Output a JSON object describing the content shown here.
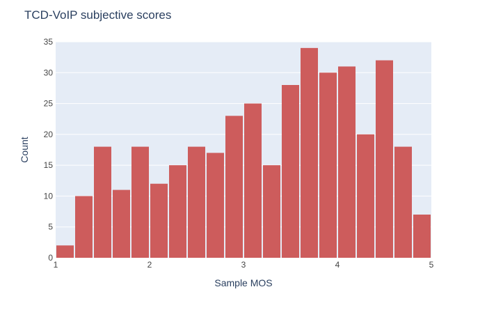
{
  "chart_data": {
    "type": "bar",
    "title": "TCD-VoIP subjective scores",
    "xlabel": "Sample MOS",
    "ylabel": "Count",
    "xlim": [
      1,
      5
    ],
    "ylim": [
      0,
      35
    ],
    "x_ticks": [
      1,
      2,
      3,
      4,
      5
    ],
    "y_ticks": [
      0,
      5,
      10,
      15,
      20,
      25,
      30,
      35
    ],
    "bin_width": 0.2,
    "bins": [
      {
        "x0": 1.0,
        "x1": 1.2,
        "count": 2
      },
      {
        "x0": 1.2,
        "x1": 1.4,
        "count": 10
      },
      {
        "x0": 1.4,
        "x1": 1.6,
        "count": 18
      },
      {
        "x0": 1.6,
        "x1": 1.8,
        "count": 11
      },
      {
        "x0": 1.8,
        "x1": 2.0,
        "count": 18
      },
      {
        "x0": 2.0,
        "x1": 2.2,
        "count": 12
      },
      {
        "x0": 2.2,
        "x1": 2.4,
        "count": 15
      },
      {
        "x0": 2.4,
        "x1": 2.6,
        "count": 18
      },
      {
        "x0": 2.6,
        "x1": 2.8,
        "count": 17
      },
      {
        "x0": 2.8,
        "x1": 3.0,
        "count": 23
      },
      {
        "x0": 3.0,
        "x1": 3.2,
        "count": 25
      },
      {
        "x0": 3.2,
        "x1": 3.4,
        "count": 15
      },
      {
        "x0": 3.4,
        "x1": 3.6,
        "count": 28
      },
      {
        "x0": 3.6,
        "x1": 3.8,
        "count": 34
      },
      {
        "x0": 3.8,
        "x1": 4.0,
        "count": 30
      },
      {
        "x0": 4.0,
        "x1": 4.2,
        "count": 31
      },
      {
        "x0": 4.2,
        "x1": 4.4,
        "count": 20
      },
      {
        "x0": 4.4,
        "x1": 4.6,
        "count": 32
      },
      {
        "x0": 4.6,
        "x1": 4.8,
        "count": 18
      },
      {
        "x0": 4.8,
        "x1": 5.0,
        "count": 7
      }
    ],
    "grid": true,
    "colors": {
      "bar": "#cd5c5c",
      "plot_background": "#e5ecf6",
      "grid": "#ffffff",
      "text": "#2a3f5f",
      "tick_text": "#444444"
    }
  }
}
